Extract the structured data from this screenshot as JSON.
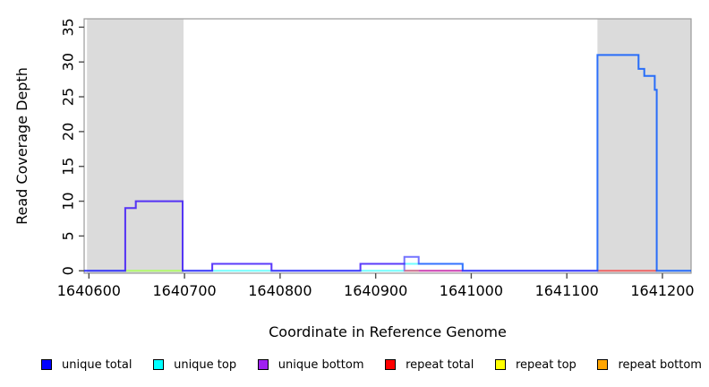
{
  "chart_data": {
    "type": "line",
    "subtype": "step-coverage",
    "title": "",
    "xlabel": "Coordinate in Reference Genome",
    "ylabel": "Read Coverage Depth",
    "x_ticks": [
      1640600,
      1640700,
      1640800,
      1640900,
      1641000,
      1641100,
      1641200
    ],
    "y_ticks": [
      0,
      5,
      10,
      15,
      20,
      25,
      30,
      35
    ],
    "xlim": [
      1640595,
      1641230
    ],
    "ylim": [
      -0.35,
      36.2
    ],
    "grid": false,
    "background_color": "#ffffff",
    "shading_color": "#dbdbdb",
    "border_color": "#999999",
    "tick_color": "#4d4d4d",
    "shaded_regions": [
      {
        "name": "left-repeat-region",
        "start": 1640598,
        "end": 1640699
      },
      {
        "name": "right-repeat-region",
        "start": 1641132,
        "end": 1641230
      }
    ],
    "series": [
      {
        "name": "repeat total",
        "slug": "repeat-total",
        "color": "#FF0000",
        "segments": [
          [
            [
              1640945,
              0
            ],
            [
              1640991,
              0
            ]
          ],
          [
            [
              1641132,
              0
            ],
            [
              1641194,
              0
            ]
          ]
        ]
      },
      {
        "name": "unique top",
        "slug": "unique-top",
        "color": "#00FFFF",
        "segments": [
          [
            [
              1640595,
              0
            ],
            [
              1640930,
              0
            ],
            [
              1640930,
              1
            ],
            [
              1640991,
              1
            ],
            [
              1640991,
              0
            ],
            [
              1641132,
              0
            ],
            [
              1641132,
              31
            ],
            [
              1641175,
              31
            ],
            [
              1641175,
              29
            ],
            [
              1641181,
              29
            ],
            [
              1641181,
              28
            ],
            [
              1641192,
              28
            ],
            [
              1641192,
              26
            ],
            [
              1641194,
              26
            ],
            [
              1641194,
              0
            ],
            [
              1641230,
              0
            ]
          ]
        ]
      },
      {
        "name": "repeat top",
        "slug": "repeat-top",
        "color": "#FFFF00",
        "segments": [
          [
            [
              1640638,
              0
            ],
            [
              1640698,
              0
            ]
          ],
          [
            [
              1640930,
              0
            ],
            [
              1640945,
              0
            ]
          ]
        ]
      },
      {
        "name": "repeat bottom",
        "slug": "repeat-bottom",
        "color": "#FFA500",
        "segments": [
          [
            [
              1640930,
              0
            ],
            [
              1640945,
              0
            ]
          ]
        ]
      },
      {
        "name": "unique bottom",
        "slug": "unique-bottom",
        "color": "#A020F0",
        "segments": [
          [
            [
              1640595,
              0
            ],
            [
              1640638,
              0
            ],
            [
              1640638,
              9
            ],
            [
              1640649,
              9
            ],
            [
              1640649,
              10
            ],
            [
              1640698,
              10
            ],
            [
              1640698,
              0
            ],
            [
              1640729,
              0
            ],
            [
              1640729,
              1
            ],
            [
              1640791,
              1
            ],
            [
              1640791,
              0
            ],
            [
              1640884,
              0
            ],
            [
              1640884,
              1
            ],
            [
              1640930,
              1
            ],
            [
              1640930,
              0
            ],
            [
              1641132,
              0
            ]
          ]
        ]
      },
      {
        "name": "unique total",
        "slug": "unique-total",
        "color": "#0000FF",
        "segments": [
          [
            [
              1640595,
              0
            ],
            [
              1640638,
              0
            ],
            [
              1640638,
              9
            ],
            [
              1640649,
              9
            ],
            [
              1640649,
              10
            ],
            [
              1640698,
              10
            ],
            [
              1640698,
              0
            ],
            [
              1640729,
              0
            ],
            [
              1640729,
              1
            ],
            [
              1640791,
              1
            ],
            [
              1640791,
              0
            ],
            [
              1640884,
              0
            ],
            [
              1640884,
              1
            ],
            [
              1640930,
              1
            ],
            [
              1640930,
              2
            ],
            [
              1640945,
              2
            ],
            [
              1640945,
              1
            ],
            [
              1640991,
              1
            ],
            [
              1640991,
              0
            ],
            [
              1641132,
              0
            ],
            [
              1641132,
              31
            ],
            [
              1641175,
              31
            ],
            [
              1641175,
              29
            ],
            [
              1641181,
              29
            ],
            [
              1641181,
              28
            ],
            [
              1641192,
              28
            ],
            [
              1641192,
              26
            ],
            [
              1641194,
              26
            ],
            [
              1641194,
              0
            ],
            [
              1641230,
              0
            ]
          ]
        ]
      }
    ],
    "legend": [
      {
        "label": "unique total",
        "color": "#0000FF"
      },
      {
        "label": "unique top",
        "color": "#00FFFF"
      },
      {
        "label": "unique bottom",
        "color": "#A020F0"
      },
      {
        "label": "repeat total",
        "color": "#FF0000"
      },
      {
        "label": "repeat top",
        "color": "#FFFF00"
      },
      {
        "label": "repeat bottom",
        "color": "#FFA500"
      }
    ],
    "legend_position": "bottom"
  }
}
